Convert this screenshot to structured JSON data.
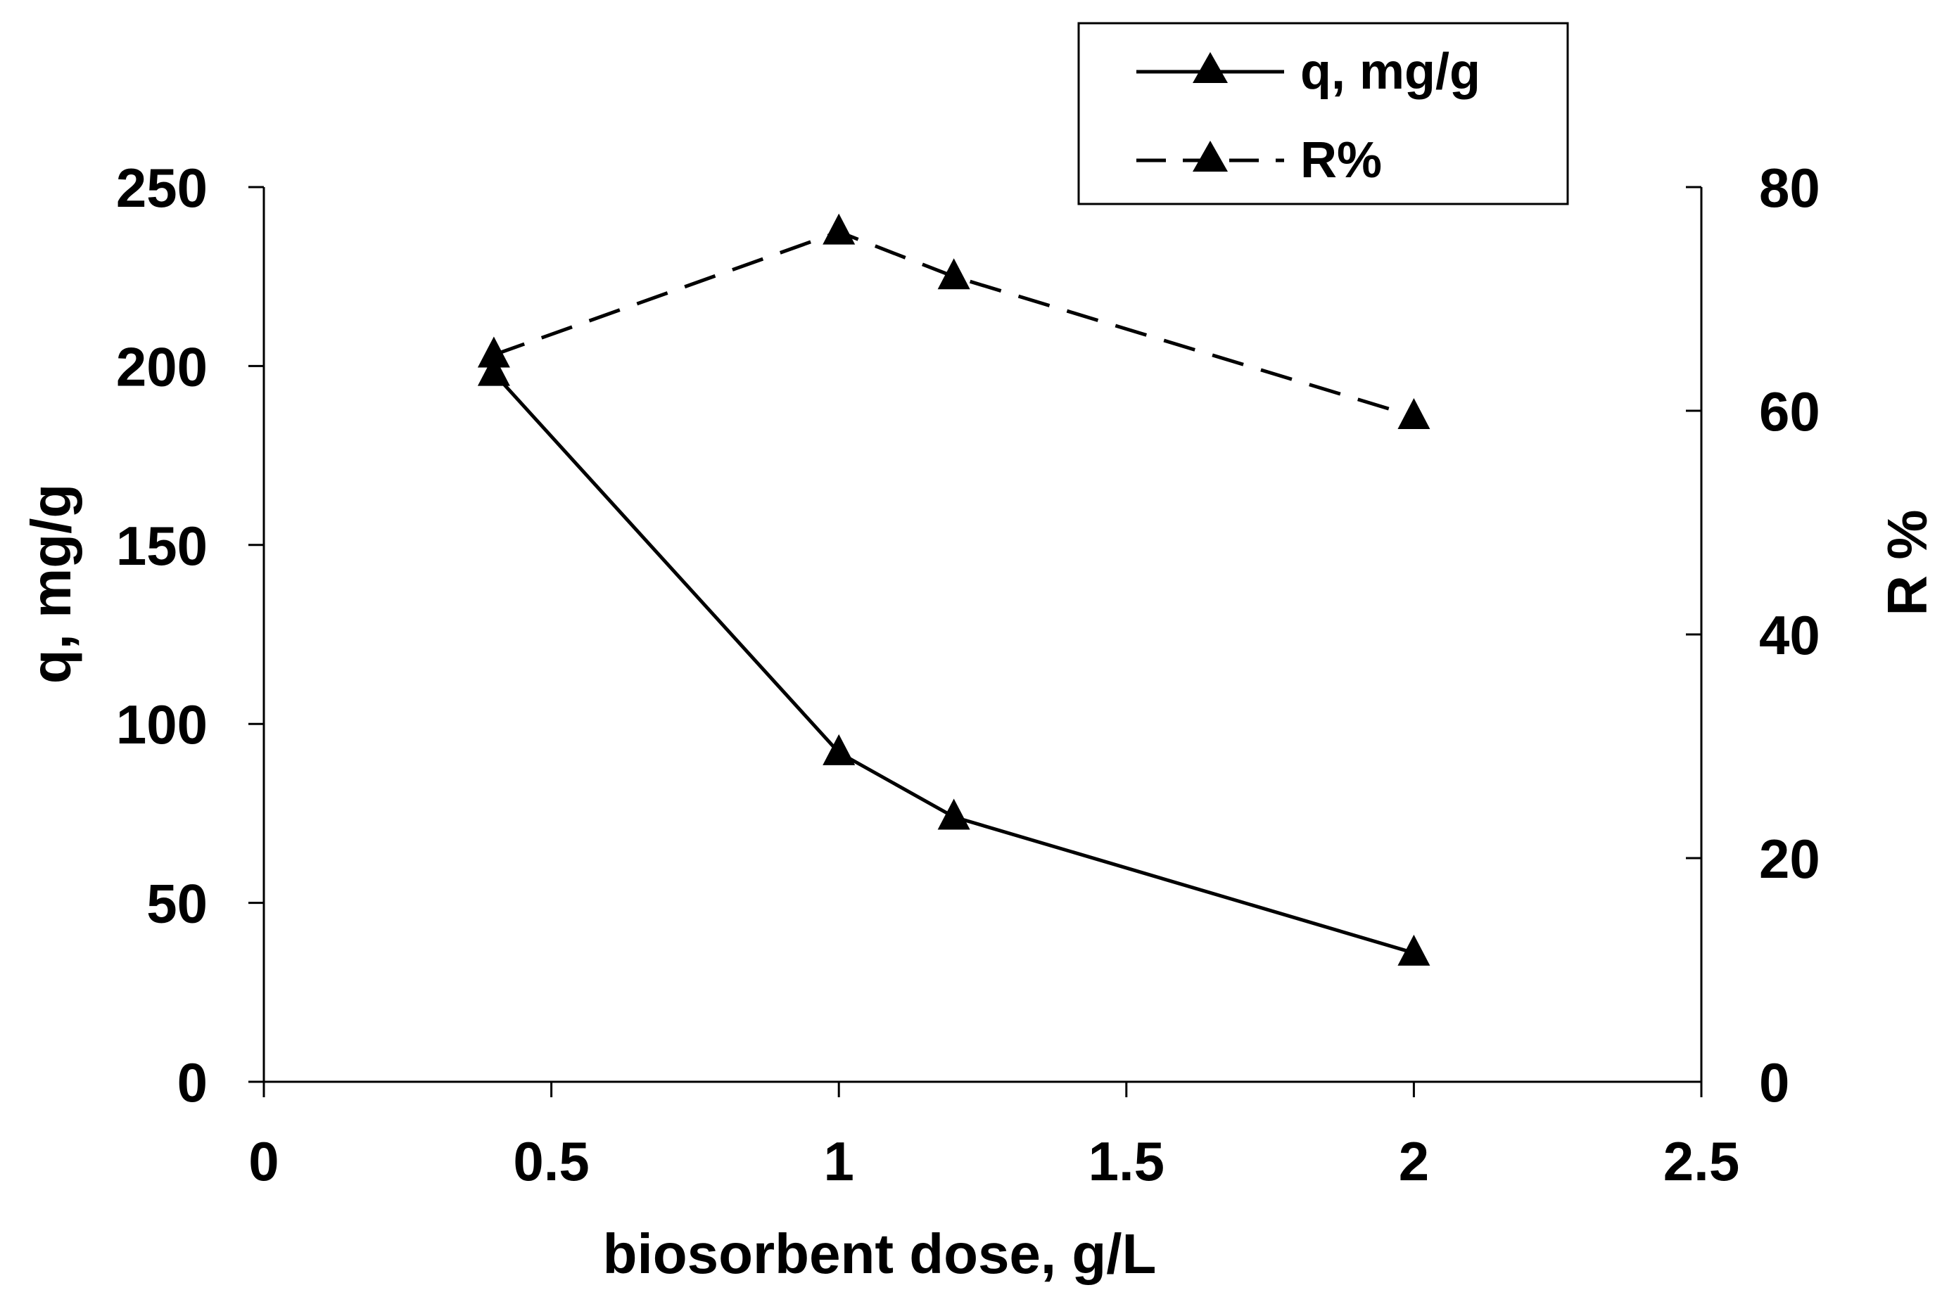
{
  "chart_data": {
    "type": "line",
    "title": "",
    "xlabel": "biosorbent dose, g/L",
    "ylabel": "q, mg/g",
    "y2label": "R %",
    "xlim": [
      0,
      2.5
    ],
    "ylim": [
      0,
      250
    ],
    "y2lim": [
      0,
      80
    ],
    "x_ticks": [
      "0",
      "0.5",
      "1",
      "1.5",
      "2",
      "2.5"
    ],
    "y_ticks": [
      "0",
      "50",
      "100",
      "150",
      "200",
      "250"
    ],
    "y2_ticks": [
      "0",
      "20",
      "40",
      "60",
      "80"
    ],
    "grid": false,
    "legend_position": "top-right",
    "series": [
      {
        "name": "q, mg/g",
        "axis": "left",
        "line_style": "solid",
        "marker": "triangle",
        "x": [
          0.4,
          1.0,
          1.2,
          2.0
        ],
        "values": [
          198,
          92,
          74,
          36
        ]
      },
      {
        "name": "R%",
        "axis": "right",
        "line_style": "dashed",
        "marker": "triangle",
        "x": [
          0.4,
          1.0,
          1.2,
          2.0
        ],
        "values": [
          65,
          76,
          72,
          59.5
        ]
      }
    ],
    "colors": {
      "line": "#000000",
      "background": "#ffffff"
    }
  }
}
